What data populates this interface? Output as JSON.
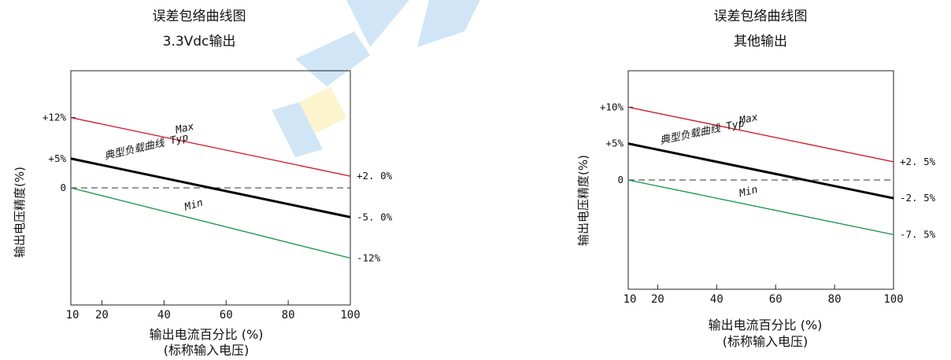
{
  "colors": {
    "max": "#d0101c",
    "typ": "#000000",
    "min": "#149448",
    "zero": "#333333",
    "watermark": "#2f8fd8",
    "watermark_plug": "#f2d21c"
  },
  "chart_data": [
    {
      "type": "line",
      "title": "误差包络曲线图",
      "subtitle": "3.3Vdc输出",
      "xlabel": "输出电流百分比 (%)",
      "xlabel2": "(标称输入电压)",
      "ylabel": "输出电压精度(%)",
      "xlim": [
        10,
        100
      ],
      "ylim": [
        -20,
        20
      ],
      "x_ticks": [
        10,
        20,
        40,
        60,
        80,
        100
      ],
      "y_ticks": [
        {
          "value": 12,
          "label": "+12%"
        },
        {
          "value": 5,
          "label": "+5%"
        },
        {
          "value": 0,
          "label": "0"
        }
      ],
      "right_labels": [
        {
          "value": 2,
          "label": "+2. 0%"
        },
        {
          "value": -5,
          "label": "-5. 0%"
        },
        {
          "value": -12,
          "label": "-12%"
        }
      ],
      "zero_line": true,
      "series": [
        {
          "key": "max",
          "label": "Max",
          "x": [
            10,
            100
          ],
          "y": [
            12,
            2
          ],
          "label_x": 44,
          "label_angle": -13
        },
        {
          "key": "typ",
          "label": "典型负载曲线 Typ",
          "x": [
            10,
            100
          ],
          "y": [
            5,
            -5
          ],
          "label_x": 21,
          "label_angle": -13
        },
        {
          "key": "min",
          "label": "Min",
          "x": [
            10,
            100
          ],
          "y": [
            0,
            -12
          ],
          "label_x": 47,
          "label_angle": -16
        }
      ]
    },
    {
      "type": "line",
      "title": "误差包络曲线图",
      "subtitle": "其他输出",
      "xlabel": "输出电流百分比 (%)",
      "xlabel2": "(标称输入电压)",
      "ylabel": "输出电压精度(%)",
      "xlim": [
        10,
        100
      ],
      "ylim": [
        -15,
        15
      ],
      "x_ticks": [
        10,
        20,
        40,
        60,
        80,
        100
      ],
      "y_ticks": [
        {
          "value": 10,
          "label": "+10%"
        },
        {
          "value": 5,
          "label": "+5%"
        },
        {
          "value": 0,
          "label": "0"
        }
      ],
      "right_labels": [
        {
          "value": 2.5,
          "label": "+2. 5%"
        },
        {
          "value": -2.5,
          "label": "-2. 5%"
        },
        {
          "value": -7.5,
          "label": "-7. 5%"
        }
      ],
      "zero_line": true,
      "series": [
        {
          "key": "max",
          "label": "Max",
          "x": [
            10,
            100
          ],
          "y": [
            10,
            2.5
          ],
          "label_x": 48,
          "label_angle": -12
        },
        {
          "key": "typ",
          "label": "典型负载曲线 Typ",
          "x": [
            10,
            100
          ],
          "y": [
            5,
            -2.5
          ],
          "label_x": 21,
          "label_angle": -12
        },
        {
          "key": "min",
          "label": "Min",
          "x": [
            10,
            100
          ],
          "y": [
            0,
            -7.5
          ],
          "label_x": 48,
          "label_angle": -14
        }
      ]
    }
  ]
}
